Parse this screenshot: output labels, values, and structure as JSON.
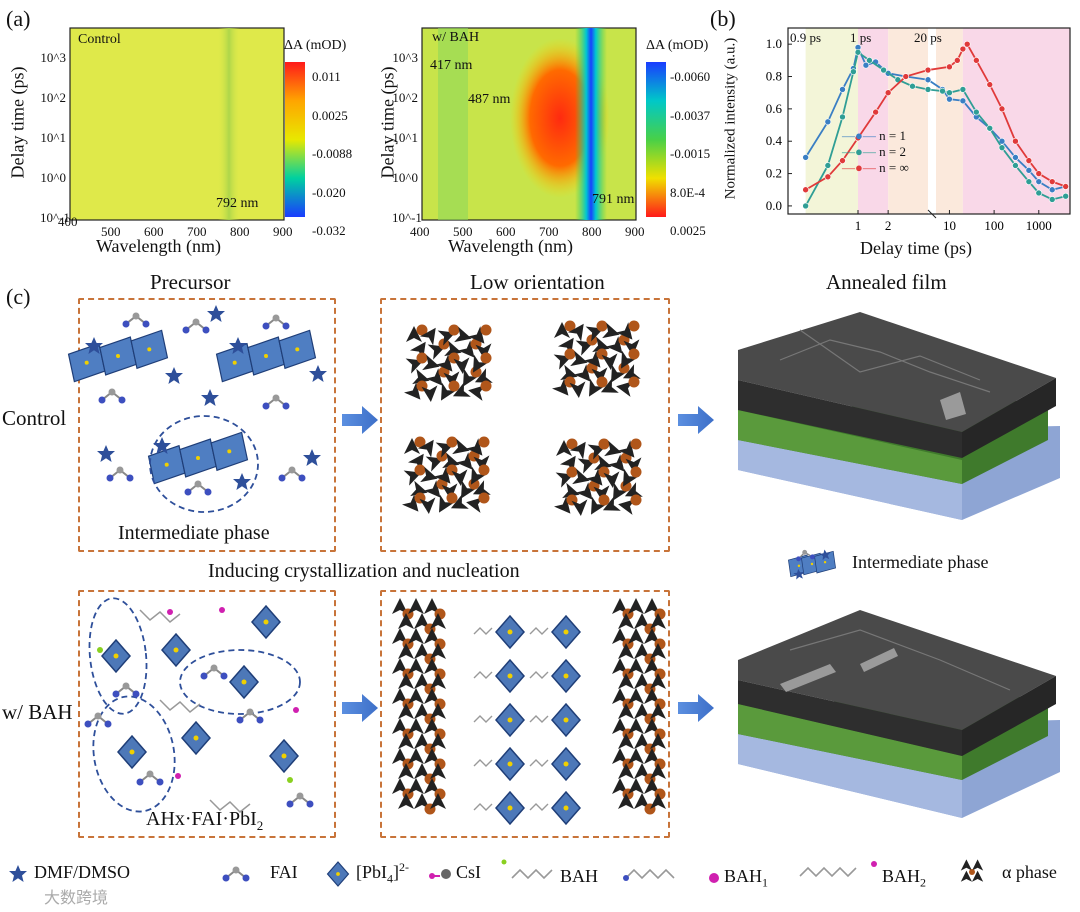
{
  "panel_a": {
    "label": "(a)",
    "left_map": {
      "name": "Control",
      "xlabel": "Wavelength (nm)",
      "ylabel": "Delay time (ps)",
      "xticks": [
        "400",
        "500",
        "600",
        "700",
        "800",
        "900"
      ],
      "yticks": [
        "10^-1",
        "10^0",
        "10^1",
        "10^2",
        "10^3"
      ],
      "annotation": "792 nm",
      "colorbar_title": "ΔA (mOD)",
      "colorbar_ticks": [
        "0.011",
        "0.0025",
        "-0.0088",
        "-0.020",
        "-0.032"
      ]
    },
    "right_map": {
      "name": "w/ BAH",
      "xlabel": "Wavelength (nm)",
      "ylabel": "Delay time (ps)",
      "xticks": [
        "400",
        "500",
        "600",
        "700",
        "800",
        "900"
      ],
      "yticks": [
        "10^-1",
        "10^0",
        "10^1",
        "10^2",
        "10^3"
      ],
      "annotations": [
        "417 nm",
        "487 nm",
        "791 nm"
      ],
      "colorbar_title": "ΔA (mOD)",
      "colorbar_ticks": [
        "-0.0060",
        "-0.0037",
        "-0.0015",
        "8.0E-4",
        "0.0025"
      ]
    }
  },
  "chart_data": {
    "type": "scatter",
    "title": "(b)",
    "xlabel": "Delay time (ps)",
    "ylabel": "Normalized intensity (a.u.)",
    "xscale": "log-broken",
    "xticks": [
      "1",
      "2",
      "10",
      "100",
      "1000"
    ],
    "yticks": [
      "0.0",
      "0.2",
      "0.4",
      "0.6",
      "0.8",
      "1.0"
    ],
    "ylim": [
      -0.05,
      1.1
    ],
    "region_labels": [
      "0.9 ps",
      "1 ps",
      "20 ps"
    ],
    "series": [
      {
        "name": "n = 1",
        "color": "#3a7fc4",
        "x": [
          0.3,
          0.5,
          0.7,
          0.9,
          1.0,
          1.2,
          1.5,
          2,
          3,
          5,
          7,
          10,
          20,
          40,
          80,
          150,
          300,
          600,
          1000,
          2000,
          4000
        ],
        "y": [
          0.3,
          0.52,
          0.72,
          0.85,
          0.98,
          0.87,
          0.89,
          0.82,
          0.8,
          0.78,
          0.72,
          0.66,
          0.65,
          0.55,
          0.48,
          0.4,
          0.3,
          0.22,
          0.15,
          0.1,
          0.12
        ]
      },
      {
        "name": "n = 2",
        "color": "#2f9e95",
        "x": [
          0.3,
          0.5,
          0.7,
          0.9,
          1.0,
          1.3,
          1.8,
          2.5,
          3.5,
          5,
          7,
          10,
          20,
          40,
          80,
          150,
          300,
          600,
          1000,
          2000,
          4000
        ],
        "y": [
          0.0,
          0.25,
          0.55,
          0.83,
          0.95,
          0.9,
          0.84,
          0.78,
          0.74,
          0.72,
          0.71,
          0.7,
          0.72,
          0.58,
          0.48,
          0.36,
          0.25,
          0.15,
          0.08,
          0.04,
          0.06
        ]
      },
      {
        "name": "n = ∞",
        "color": "#e03a3a",
        "x": [
          0.3,
          0.5,
          0.7,
          1.0,
          1.5,
          2,
          3,
          5,
          10,
          15,
          20,
          25,
          40,
          80,
          150,
          300,
          600,
          1000,
          2000,
          4000
        ],
        "y": [
          0.1,
          0.18,
          0.28,
          0.42,
          0.58,
          0.7,
          0.8,
          0.84,
          0.86,
          0.9,
          0.97,
          1.0,
          0.9,
          0.75,
          0.6,
          0.4,
          0.28,
          0.2,
          0.15,
          0.12
        ]
      }
    ]
  },
  "panel_c": {
    "label": "(c)",
    "col_titles": [
      "Precursor",
      "Low orientation",
      "Annealed film"
    ],
    "row_labels": [
      "Control",
      "w/ BAH"
    ],
    "intermediate_label": "Intermediate phase",
    "middle_title": "Inducing crystallization  and nucleation",
    "bottom_box_label_main": "AHx·FAI·PbI",
    "bottom_box_label_sub": "2",
    "side_legend": "Intermediate phase"
  },
  "legend": {
    "items": [
      "DMF/DMSO",
      "FAI",
      "[PbI4]2-",
      "CsI",
      "BAH",
      "BAH1",
      "BAH2",
      "α phase"
    ],
    "pbi4_main": "[PbI",
    "pbi4_sub": "4",
    "pbi4_tail": "]",
    "pbi4_sup": "2-",
    "bah1_main": "BAH",
    "bah1_sub": "1",
    "bah2_main": "BAH",
    "bah2_sub": "2"
  },
  "watermark": "大数跨境",
  "colors": {
    "dash": "#c8743a",
    "arrow": "#4a7bd0",
    "film_dark": "#3c3c3c",
    "film_green": "#5a8a3a",
    "film_blue": "#9aaed8"
  }
}
